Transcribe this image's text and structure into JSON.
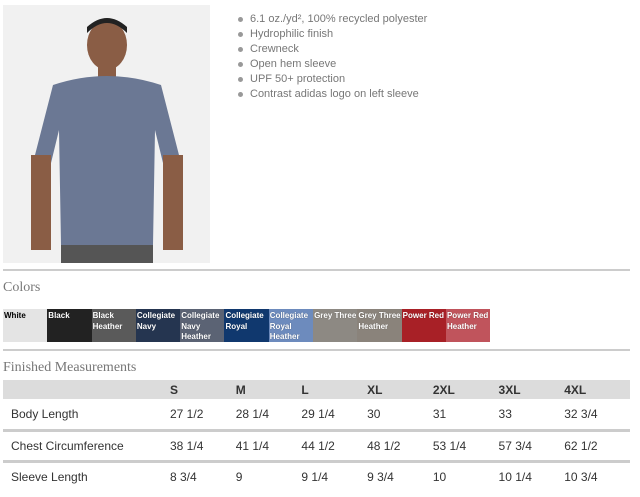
{
  "features": [
    "6.1 oz./yd², 100% recycled polyester",
    "Hydrophilic finish",
    "Crewneck",
    "Open hem sleeve",
    "UPF 50+ protection",
    "Contrast adidas logo on left sleeve"
  ],
  "colors_heading": "Colors",
  "colors": [
    {
      "name": "White",
      "hex": "#e4e4e4",
      "text": "#000"
    },
    {
      "name": "Black",
      "hex": "#222222",
      "text": "#fff"
    },
    {
      "name": "Black Heather",
      "hex": "#5a5a5a",
      "text": "#fff"
    },
    {
      "name": "Collegiate Navy",
      "hex": "#253550",
      "text": "#fff"
    },
    {
      "name": "Collegiate Navy Heather",
      "hex": "#5b6374",
      "text": "#fff"
    },
    {
      "name": "Collegiate Royal",
      "hex": "#10386e",
      "text": "#fff"
    },
    {
      "name": "Collegiate Royal Heather",
      "hex": "#6d8bbd",
      "text": "#fff"
    },
    {
      "name": "Grey Three",
      "hex": "#8d8983",
      "text": "#fff"
    },
    {
      "name": "Grey Three Heather",
      "hex": "#8a837b",
      "text": "#fff"
    },
    {
      "name": "Power Red",
      "hex": "#a82026",
      "text": "#fff"
    },
    {
      "name": "Power Red Heather",
      "hex": "#c0545c",
      "text": "#fff"
    }
  ],
  "measurements_heading": "Finished Measurements",
  "sizes": [
    "S",
    "M",
    "L",
    "XL",
    "2XL",
    "3XL",
    "4XL"
  ],
  "rows": [
    {
      "label": "Body Length",
      "values": [
        "27 1/2",
        "28 1/4",
        "29 1/4",
        "30",
        "31",
        "33",
        "32 3/4"
      ]
    },
    {
      "label": "Chest Circumference",
      "values": [
        "38 1/4",
        "41 1/4",
        "44 1/2",
        "48 1/2",
        "53 1/4",
        "57 3/4",
        "62 1/2"
      ]
    },
    {
      "label": "Sleeve Length",
      "values": [
        "8 3/4",
        "9",
        "9 1/4",
        "9 3/4",
        "10",
        "10 1/4",
        "10 3/4"
      ]
    }
  ]
}
